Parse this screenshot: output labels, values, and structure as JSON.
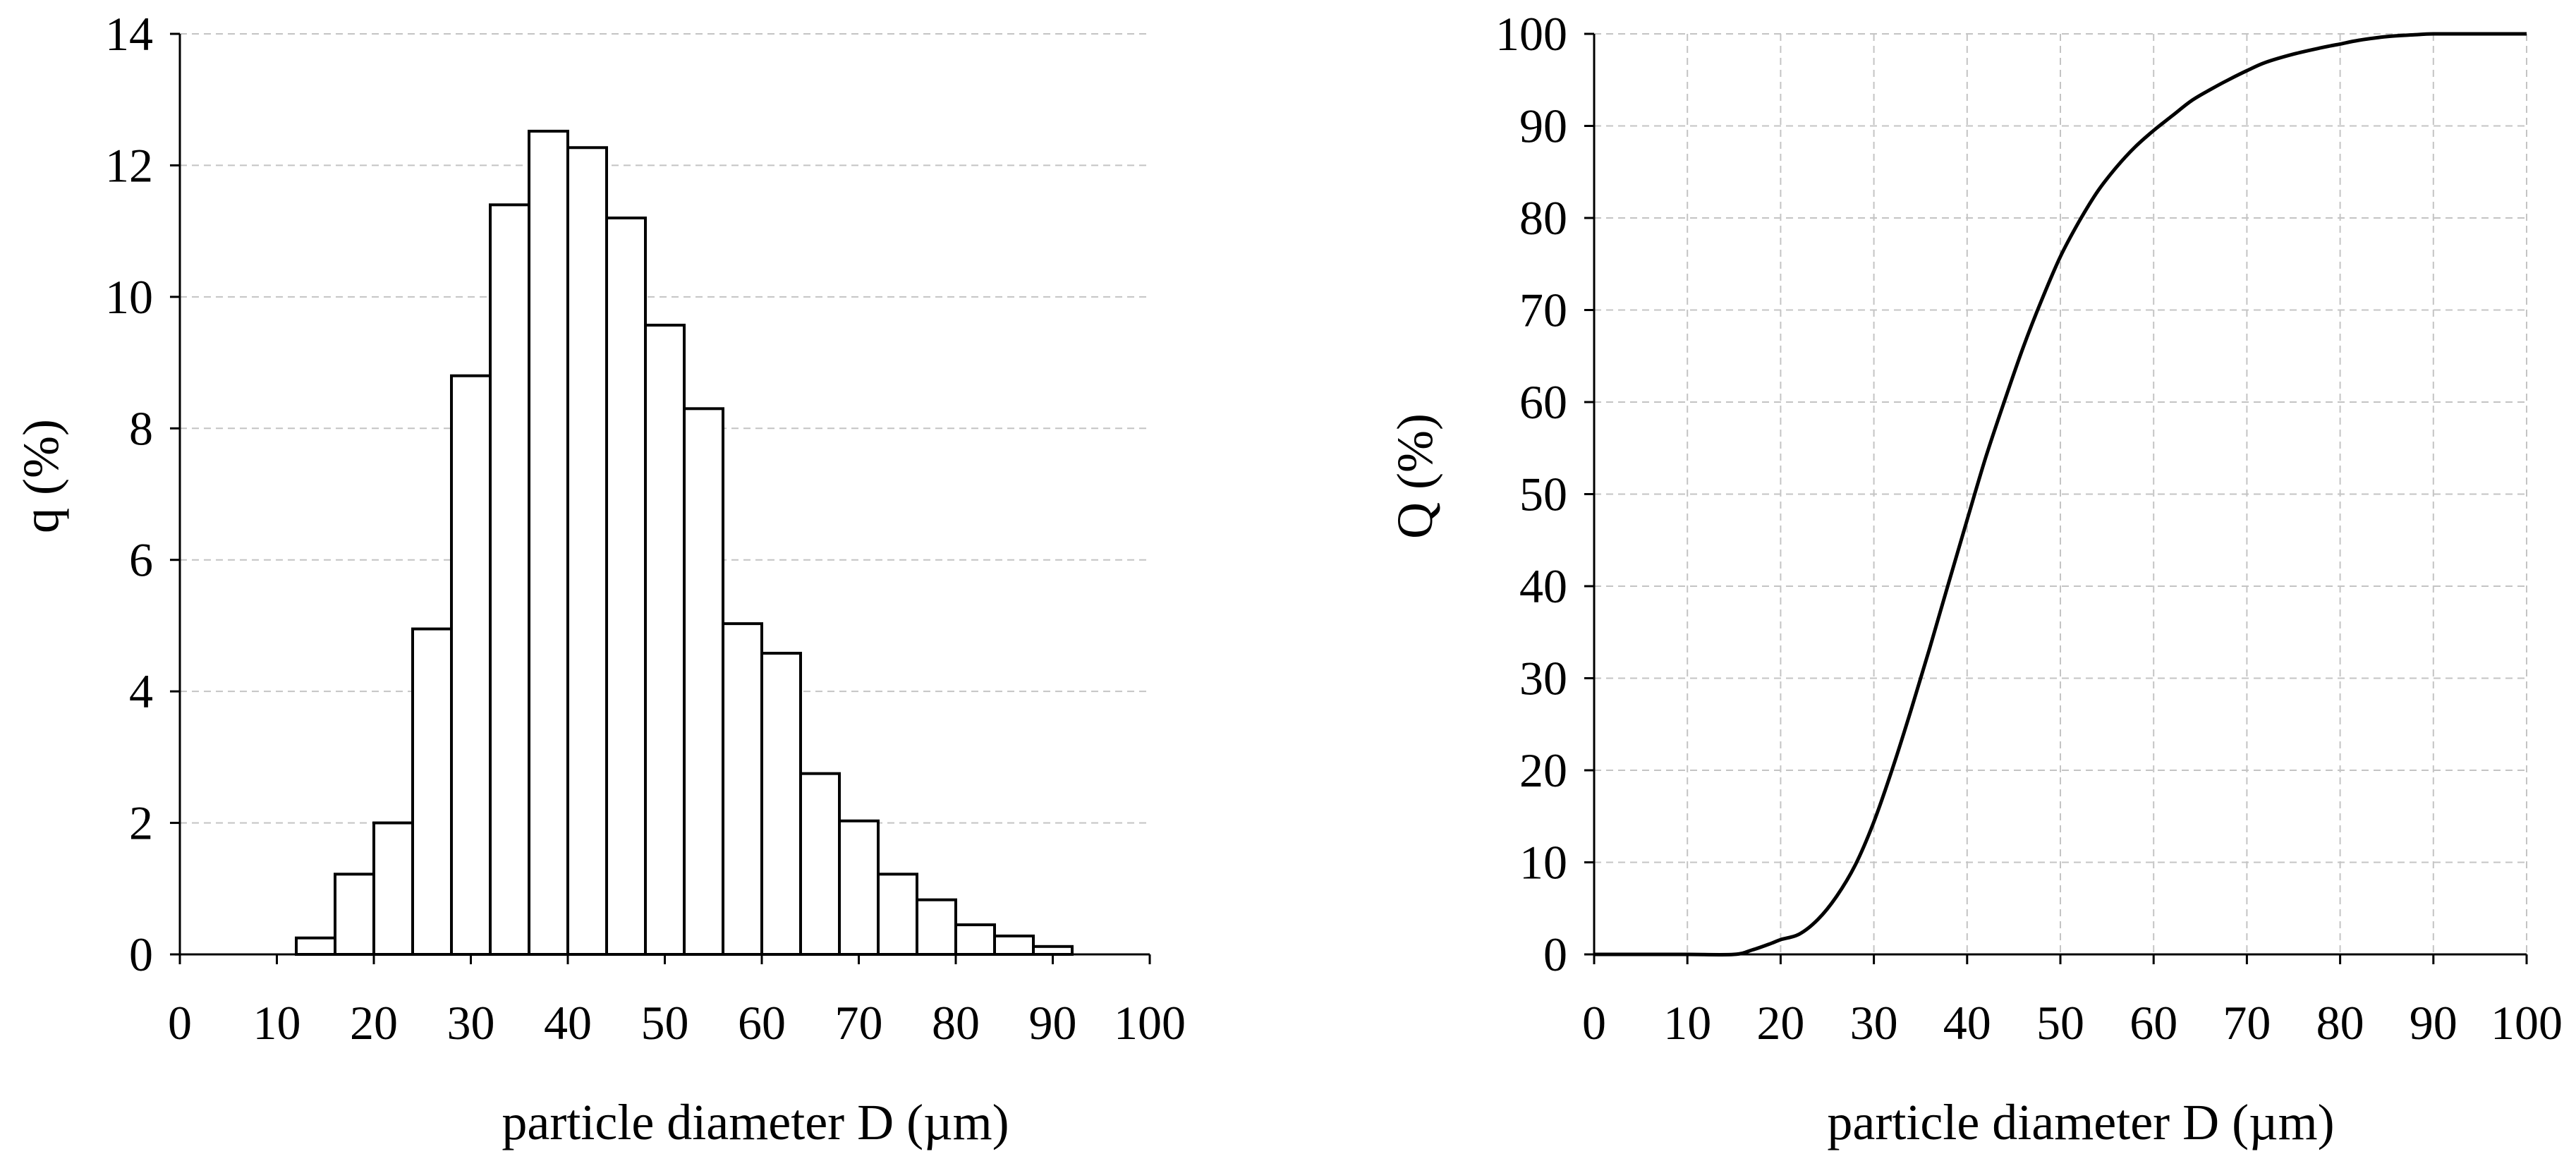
{
  "chart_data": [
    {
      "type": "bar",
      "title": "",
      "xlabel": "particle diameter D (µm)",
      "ylabel": "q (%)",
      "xlim": [
        0,
        100
      ],
      "ylim": [
        0,
        14
      ],
      "xticks": [
        "0",
        "10",
        "20",
        "30",
        "40",
        "50",
        "60",
        "70",
        "80",
        "90",
        "100"
      ],
      "yticks": [
        "0",
        "2",
        "4",
        "6",
        "8",
        "10",
        "12",
        "14"
      ],
      "grid": "horizontal-dashed",
      "bins": [
        {
          "from": 0,
          "to": 4,
          "value": 0
        },
        {
          "from": 4,
          "to": 8,
          "value": 0
        },
        {
          "from": 8,
          "to": 12,
          "value": 0
        },
        {
          "from": 12,
          "to": 16,
          "value": 0.25
        },
        {
          "from": 16,
          "to": 20,
          "value": 1.22
        },
        {
          "from": 20,
          "to": 24,
          "value": 2.0
        },
        {
          "from": 24,
          "to": 28,
          "value": 4.95
        },
        {
          "from": 28,
          "to": 32,
          "value": 8.8
        },
        {
          "from": 32,
          "to": 36,
          "value": 11.4
        },
        {
          "from": 36,
          "to": 40,
          "value": 12.52
        },
        {
          "from": 40,
          "to": 44,
          "value": 12.27
        },
        {
          "from": 44,
          "to": 48,
          "value": 11.2
        },
        {
          "from": 48,
          "to": 52,
          "value": 9.57
        },
        {
          "from": 52,
          "to": 56,
          "value": 8.3
        },
        {
          "from": 56,
          "to": 60,
          "value": 5.03
        },
        {
          "from": 60,
          "to": 64,
          "value": 4.58
        },
        {
          "from": 64,
          "to": 68,
          "value": 2.75
        },
        {
          "from": 68,
          "to": 72,
          "value": 2.03
        },
        {
          "from": 72,
          "to": 76,
          "value": 1.22
        },
        {
          "from": 76,
          "to": 80,
          "value": 0.83
        },
        {
          "from": 80,
          "to": 84,
          "value": 0.45
        },
        {
          "from": 84,
          "to": 88,
          "value": 0.28
        },
        {
          "from": 88,
          "to": 92,
          "value": 0.12
        },
        {
          "from": 92,
          "to": 96,
          "value": 0
        },
        {
          "from": 96,
          "to": 100,
          "value": 0
        }
      ]
    },
    {
      "type": "line",
      "title": "",
      "xlabel": "particle diameter D (µm)",
      "ylabel": "Q (%)",
      "xlim": [
        0,
        100
      ],
      "ylim": [
        0,
        100
      ],
      "xticks": [
        "0",
        "10",
        "20",
        "30",
        "40",
        "50",
        "60",
        "70",
        "80",
        "90",
        "100"
      ],
      "yticks": [
        "0",
        "10",
        "20",
        "30",
        "40",
        "50",
        "60",
        "70",
        "80",
        "90",
        "100"
      ],
      "grid": "both-dashed",
      "series": [
        {
          "name": "Q",
          "x": [
            0,
            5,
            10,
            15,
            17,
            19,
            20,
            22,
            24,
            26,
            28,
            30,
            32,
            34,
            36,
            38,
            40,
            42,
            44,
            46,
            48,
            50,
            52,
            54,
            56,
            58,
            60,
            62,
            64,
            66,
            68,
            70,
            72,
            75,
            78,
            80,
            82,
            85,
            88,
            90,
            95,
            100
          ],
          "y": [
            0,
            0,
            0,
            0,
            0.5,
            1.2,
            1.6,
            2.2,
            3.8,
            6.3,
            9.7,
            14.4,
            20.2,
            26.6,
            33.3,
            40.3,
            47.2,
            54.0,
            60.1,
            65.9,
            71.1,
            75.8,
            79.6,
            82.9,
            85.5,
            87.7,
            89.5,
            91.1,
            92.7,
            93.9,
            95.0,
            96.0,
            96.9,
            97.8,
            98.5,
            98.9,
            99.3,
            99.7,
            99.9,
            100,
            100,
            100
          ]
        }
      ]
    }
  ]
}
